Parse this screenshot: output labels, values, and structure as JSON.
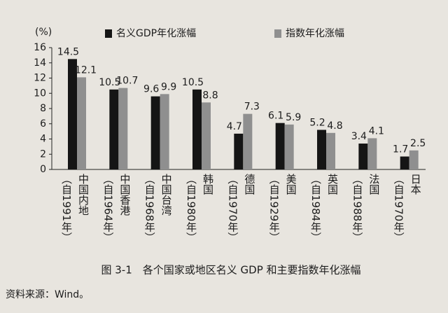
{
  "chart_data": {
    "type": "bar",
    "y_label": "(%)",
    "categories": [
      "中国内地",
      "中国香港",
      "中国台湾",
      "韩国",
      "德国",
      "美国",
      "英国",
      "法国",
      "日本"
    ],
    "periods": [
      "（自1991年）",
      "（自1964年）",
      "（自1968年）",
      "（自1980年）",
      "（自1970年）",
      "（自1929年）",
      "（自1984年）",
      "（自1988年）",
      "（自1970年）"
    ],
    "series": [
      {
        "name": "名义GDP年化涨幅",
        "color": "#151515",
        "values": [
          14.5,
          10.5,
          9.6,
          10.5,
          4.7,
          6.1,
          5.2,
          3.4,
          1.7
        ]
      },
      {
        "name": "指数年化涨幅",
        "color": "#8f8f8f",
        "values": [
          12.1,
          10.7,
          9.9,
          8.8,
          7.3,
          5.9,
          4.8,
          4.1,
          2.5
        ]
      }
    ],
    "ylim": [
      0,
      16
    ],
    "yticks": [
      0,
      2,
      4,
      6,
      8,
      10,
      12,
      14,
      16
    ],
    "caption": "图 3-1　各个国家或地区名义 GDP 和主要指数年化涨幅",
    "source": "资料来源：Wind。"
  }
}
